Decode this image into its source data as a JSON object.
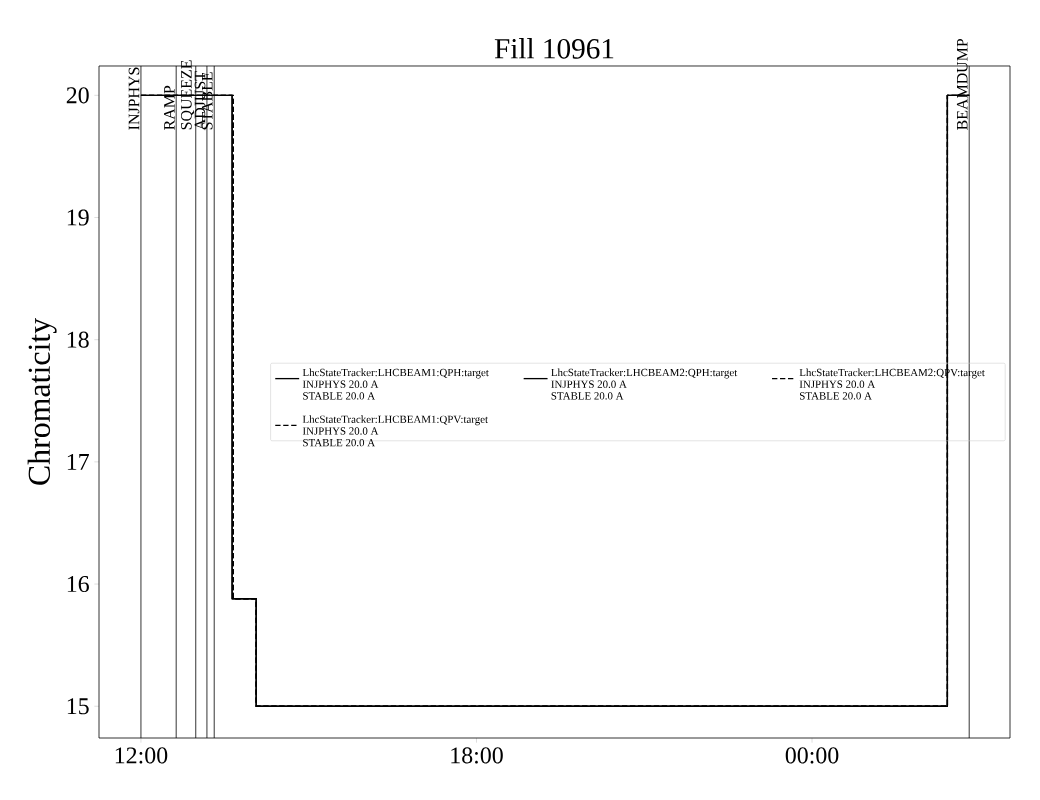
{
  "chart_data": {
    "type": "step",
    "title": "Fill 10961",
    "ylabel": "Chromaticity",
    "x": [
      12.0,
      13.63,
      14.06,
      26.42,
      26.81
    ],
    "series": [
      {
        "name": "LhcStateTracker:LHCBEAM1:QPH:target INJPHYS 20.0 A STABLE 20.0 A",
        "color": "#000000",
        "line_style": "solid",
        "values": [
          20,
          15.88,
          15,
          20,
          20
        ]
      },
      {
        "name": "LhcStateTracker:LHCBEAM2:QPH:target INJPHYS 20.0 A STABLE 20.0 A",
        "color": "#000000",
        "line_style": "solid",
        "values": [
          20,
          15.88,
          15,
          20,
          20
        ]
      },
      {
        "name": "LhcStateTracker:LHCBEAM2:QPV:target INJPHYS 20.0 A STABLE 20.0 A",
        "color": "#000000",
        "line_style": "dashed",
        "x": [
          12.0,
          13.65,
          14.06,
          26.42,
          26.81
        ],
        "values": [
          20,
          15.88,
          15,
          20,
          20
        ]
      },
      {
        "name": "LhcStateTracker:LHCBEAM1:QPV:target INJPHYS 20.0 A STABLE 20.0 A",
        "color": "#000000",
        "line_style": "dashed",
        "x": [
          12.0,
          13.65,
          14.06,
          26.42,
          26.81
        ],
        "values": [
          20,
          15.88,
          15,
          20,
          20
        ]
      }
    ],
    "xlim": [
      11.25,
      27.54
    ],
    "ylim": [
      14.74,
      20.24
    ],
    "xticks": [
      {
        "value": 12,
        "label": "12:00"
      },
      {
        "value": 18,
        "label": "18:00"
      },
      {
        "value": 24,
        "label": "00:00"
      }
    ],
    "yticks": [
      15,
      16,
      17,
      18,
      19,
      20
    ],
    "ref_lines": [
      {
        "axis": "x",
        "value": 12.0,
        "label": "INJPHYS",
        "color": "#000000"
      },
      {
        "axis": "x",
        "value": 12.63,
        "label": "RAMP",
        "color": "#000000"
      },
      {
        "axis": "x",
        "value": 12.98,
        "label": "SQUEEZE",
        "color": "#000000"
      },
      {
        "axis": "x",
        "value": 13.18,
        "label": "ADJUST",
        "color": "#000000"
      },
      {
        "axis": "x",
        "value": 13.31,
        "label": "STABLE",
        "color": "#000000"
      },
      {
        "axis": "x",
        "value": 26.81,
        "label": "BEAMDUMP",
        "color": "#000000"
      }
    ],
    "grid": false,
    "legend": "right",
    "marker": "none"
  }
}
